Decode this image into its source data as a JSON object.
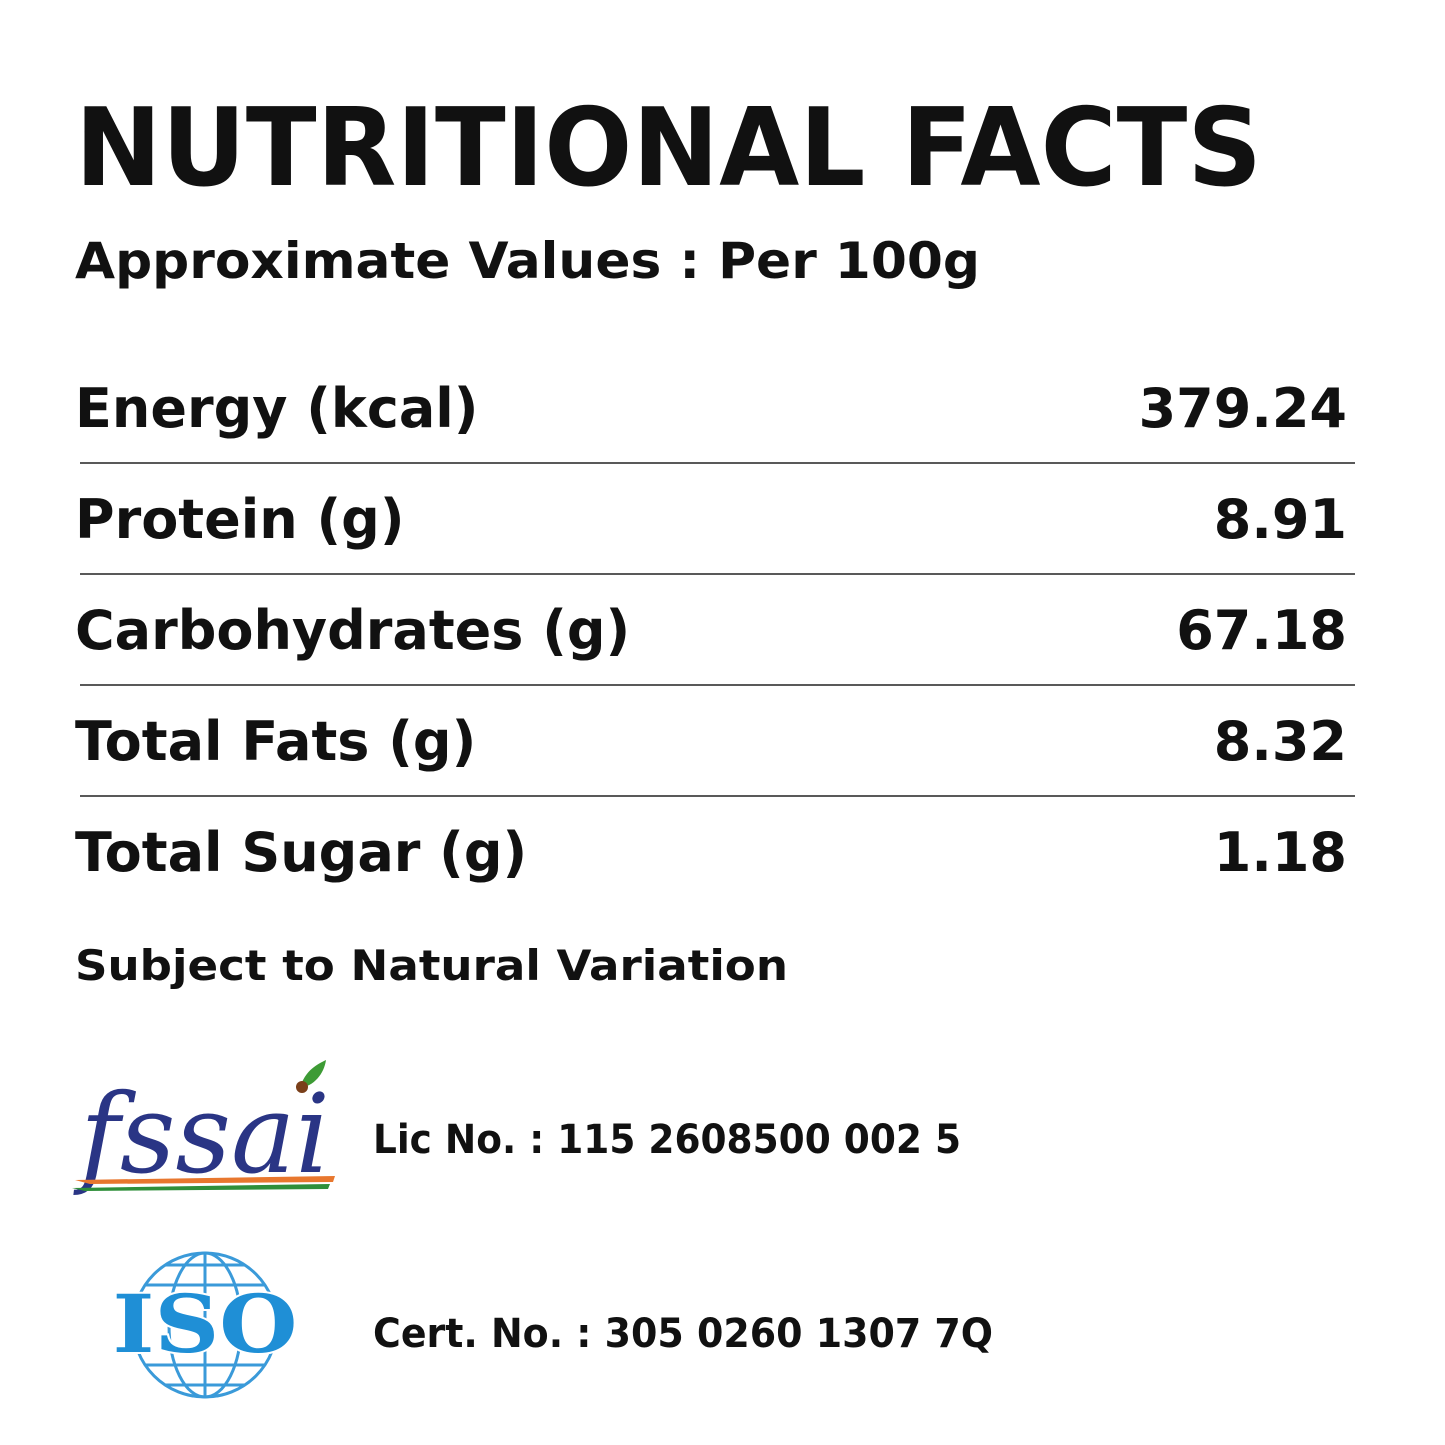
{
  "header": {
    "title": "NUTRITIONAL FACTS",
    "subtitle": "Approximate Values : Per 100g"
  },
  "table": {
    "rows": [
      {
        "label": "Energy (kcal)",
        "value": "379.24"
      },
      {
        "label": "Protein (g)",
        "value": "8.91"
      },
      {
        "label": "Carbohydrates (g)",
        "value": "67.18"
      },
      {
        "label": "Total Fats (g)",
        "value": "8.32"
      },
      {
        "label": "Total Sugar (g)",
        "value": "1.18"
      }
    ]
  },
  "note": "Subject to Natural Variation",
  "certifications": [
    {
      "logo": "fssai",
      "text": "Lic No. : 115 2608500 002 5"
    },
    {
      "logo": "ISO",
      "text": "Cert. No. : 305 0260 1307 7Q"
    }
  ]
}
